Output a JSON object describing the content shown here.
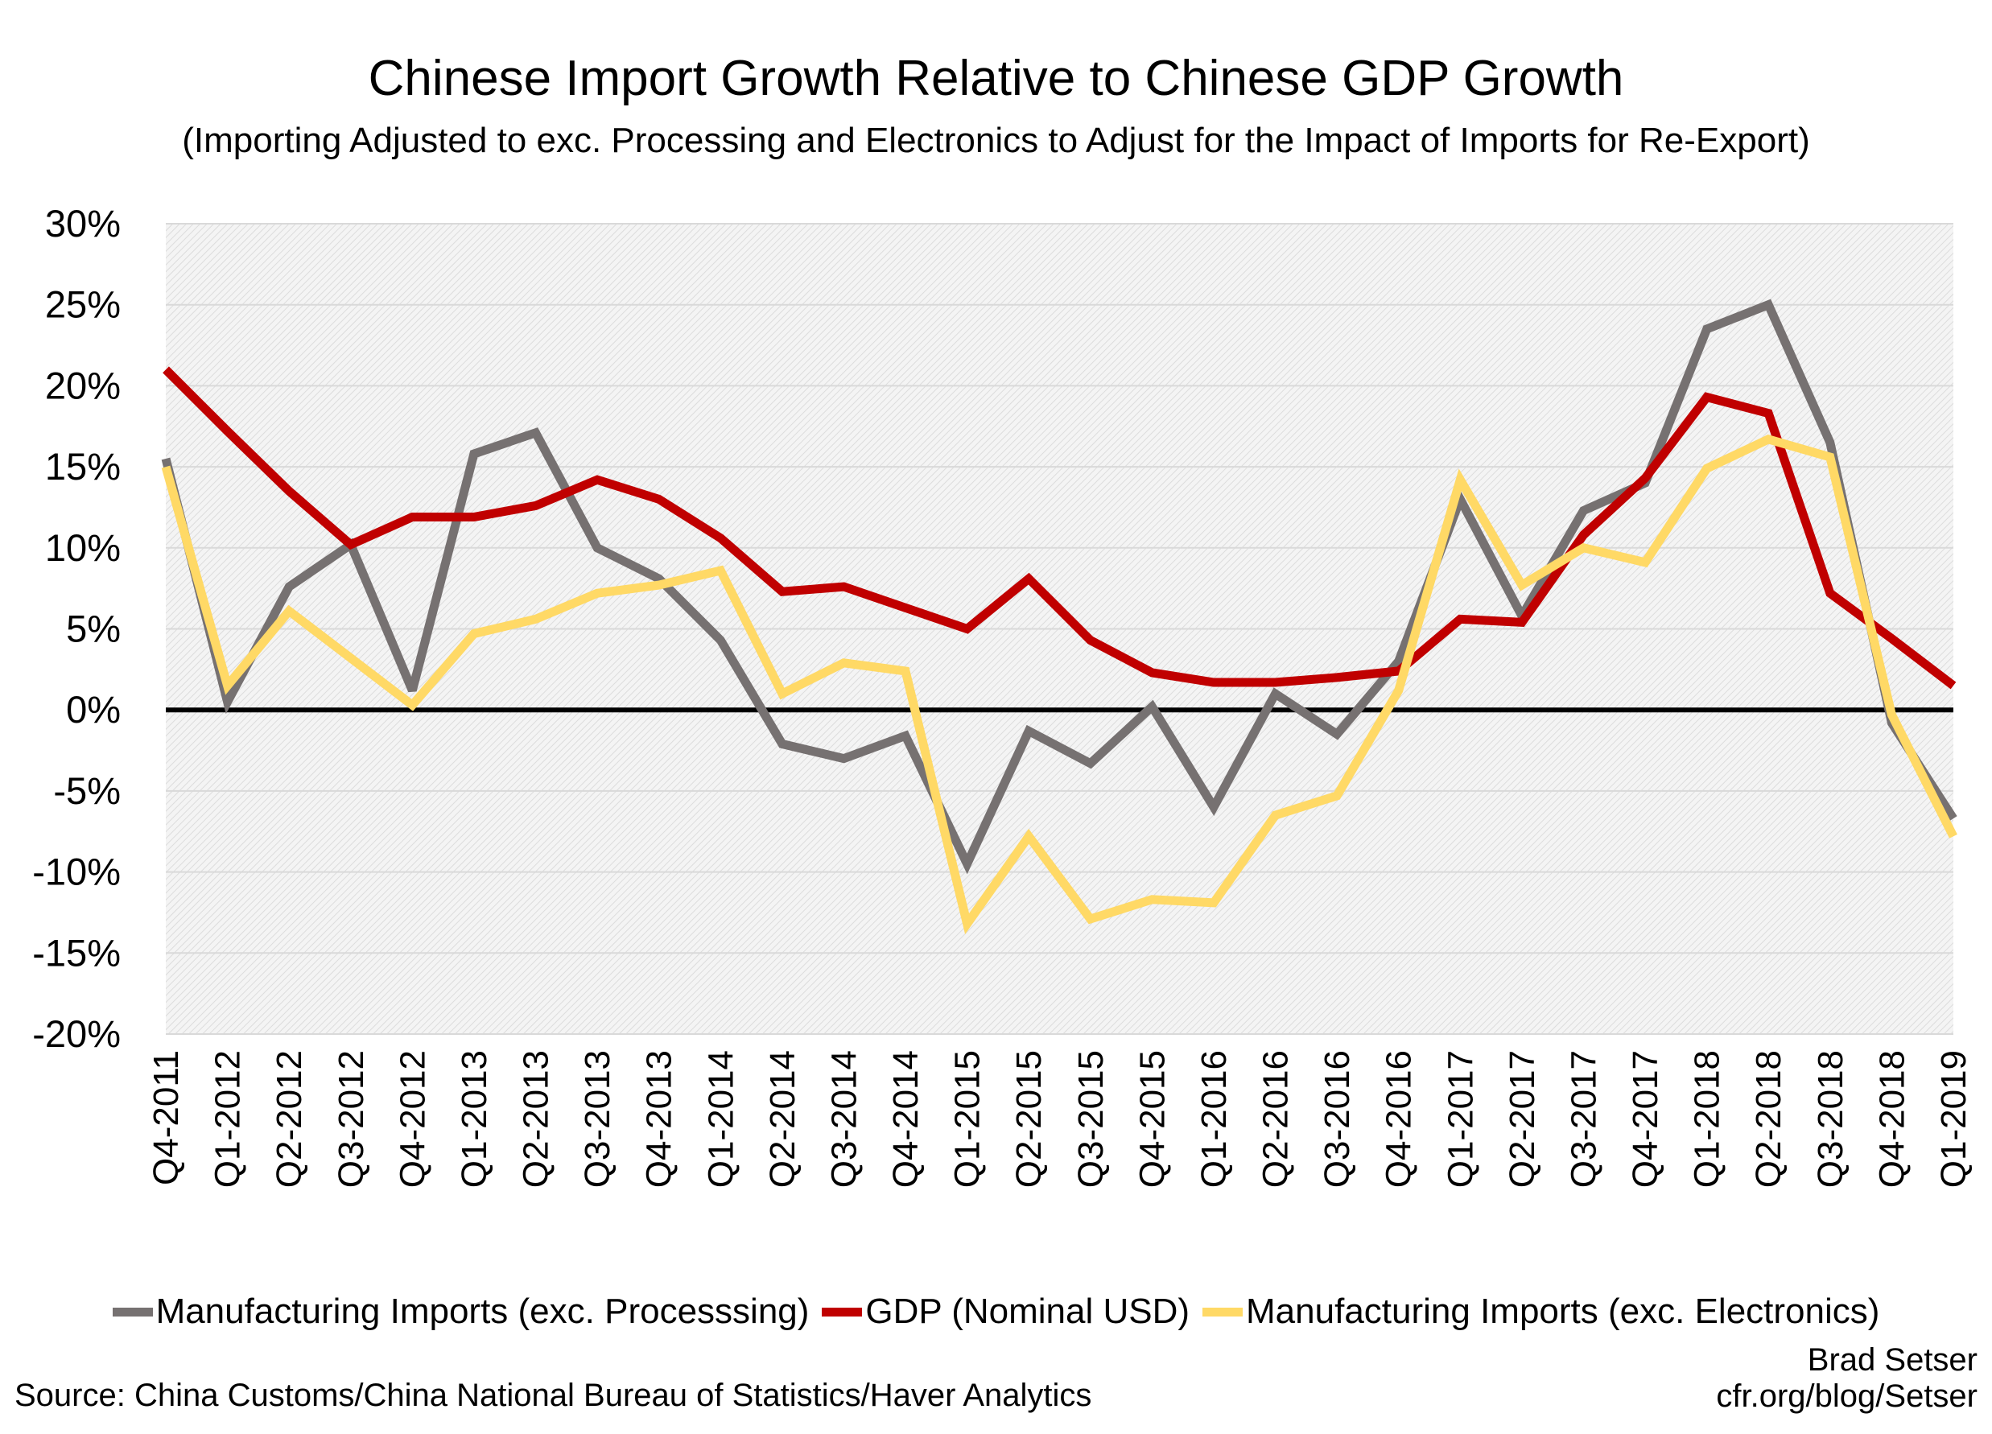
{
  "chart_data": {
    "type": "line",
    "title": "Chinese Import Growth Relative to Chinese GDP Growth",
    "subtitle": "(Importing Adjusted to exc. Processing and Electronics to Adjust for the Impact of Imports for Re-Export)",
    "xlabel": "",
    "ylabel": "",
    "ylim": [
      -20,
      30
    ],
    "ytick_step": 5,
    "ytick_format": "percent",
    "grid": true,
    "zero_line": true,
    "legend_placement": "bottom",
    "categories": [
      "Q4-2011",
      "Q1-2012",
      "Q2-2012",
      "Q3-2012",
      "Q4-2012",
      "Q1-2013",
      "Q2-2013",
      "Q3-2013",
      "Q4-2013",
      "Q1-2014",
      "Q2-2014",
      "Q3-2014",
      "Q4-2014",
      "Q1-2015",
      "Q2-2015",
      "Q3-2015",
      "Q4-2015",
      "Q1-2016",
      "Q2-2016",
      "Q3-2016",
      "Q4-2016",
      "Q1-2017",
      "Q2-2017",
      "Q3-2017",
      "Q4-2017",
      "Q1-2018",
      "Q2-2018",
      "Q3-2018",
      "Q4-2018",
      "Q1-2019"
    ],
    "series": [
      {
        "name": "Manufacturing Imports (exc. Processsing)",
        "color": "#767171",
        "values": [
          15.5,
          0.5,
          7.6,
          10.2,
          1.2,
          15.8,
          17.1,
          10.0,
          8.1,
          4.3,
          -2.1,
          -3.0,
          -1.6,
          -9.5,
          -1.3,
          -3.3,
          0.2,
          -6.0,
          1.0,
          -1.5,
          3.0,
          13.0,
          5.8,
          12.3,
          14.0,
          23.5,
          25.0,
          16.5,
          -0.8,
          -6.7
        ]
      },
      {
        "name": "GDP (Nominal USD)",
        "color": "#C00000",
        "values": [
          21.0,
          17.2,
          13.5,
          10.2,
          11.9,
          11.9,
          12.6,
          14.2,
          13.0,
          10.6,
          7.3,
          7.6,
          6.3,
          5.0,
          8.1,
          4.3,
          2.3,
          1.7,
          1.7,
          2.0,
          2.4,
          5.6,
          5.4,
          10.8,
          14.3,
          19.3,
          18.3,
          7.2,
          4.4,
          1.5
        ]
      },
      {
        "name": "Manufacturing Imports (exc. Electronics)",
        "color": "#FFD966",
        "values": [
          15.0,
          1.5,
          6.1,
          3.2,
          0.3,
          4.7,
          5.6,
          7.2,
          7.7,
          8.6,
          1.0,
          2.9,
          2.4,
          -13.2,
          -7.8,
          -12.9,
          -11.7,
          -11.9,
          -6.5,
          -5.3,
          1.2,
          14.2,
          7.7,
          10.0,
          9.1,
          14.9,
          16.7,
          15.6,
          -0.3,
          -7.8
        ]
      }
    ]
  },
  "footer": {
    "source": "Source: China Customs/China National Bureau of Statistics/Haver Analytics",
    "author": "Brad Setser",
    "site": "cfr.org/blog/Setser"
  }
}
